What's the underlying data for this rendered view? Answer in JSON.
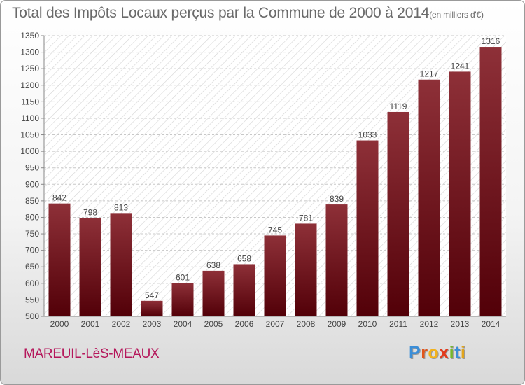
{
  "title": {
    "main": "Total des Impôts Locaux perçus par la Commune de 2000 à 2014",
    "unit": "(en milliers d'€)"
  },
  "commune": "MAREUIL-LèS-MEAUX",
  "brand": {
    "letters": [
      "P",
      "r",
      "o",
      "x",
      "i",
      "t",
      "i"
    ],
    "colors": [
      "#3b8ed8",
      "#e2561c",
      "#f2b21c",
      "#e23a1c",
      "#76b82a",
      "#3b8ed8",
      "#e2a51c"
    ]
  },
  "chart_data": {
    "type": "bar",
    "title": "Total des Impôts Locaux perçus par la Commune de 2000 à 2014",
    "xlabel": "",
    "ylabel": "",
    "categories": [
      "2000",
      "2001",
      "2002",
      "2003",
      "2004",
      "2005",
      "2006",
      "2007",
      "2008",
      "2009",
      "2010",
      "2011",
      "2012",
      "2013",
      "2014"
    ],
    "values": [
      842,
      798,
      813,
      547,
      601,
      638,
      658,
      745,
      781,
      839,
      1033,
      1119,
      1217,
      1241,
      1316
    ],
    "ylim": [
      500,
      1350
    ],
    "yticks": [
      500,
      550,
      600,
      650,
      700,
      750,
      800,
      850,
      900,
      950,
      1000,
      1050,
      1100,
      1150,
      1200,
      1250,
      1300,
      1350
    ],
    "grid": true,
    "bar_color": "#7a1f24",
    "data_labels": true
  }
}
